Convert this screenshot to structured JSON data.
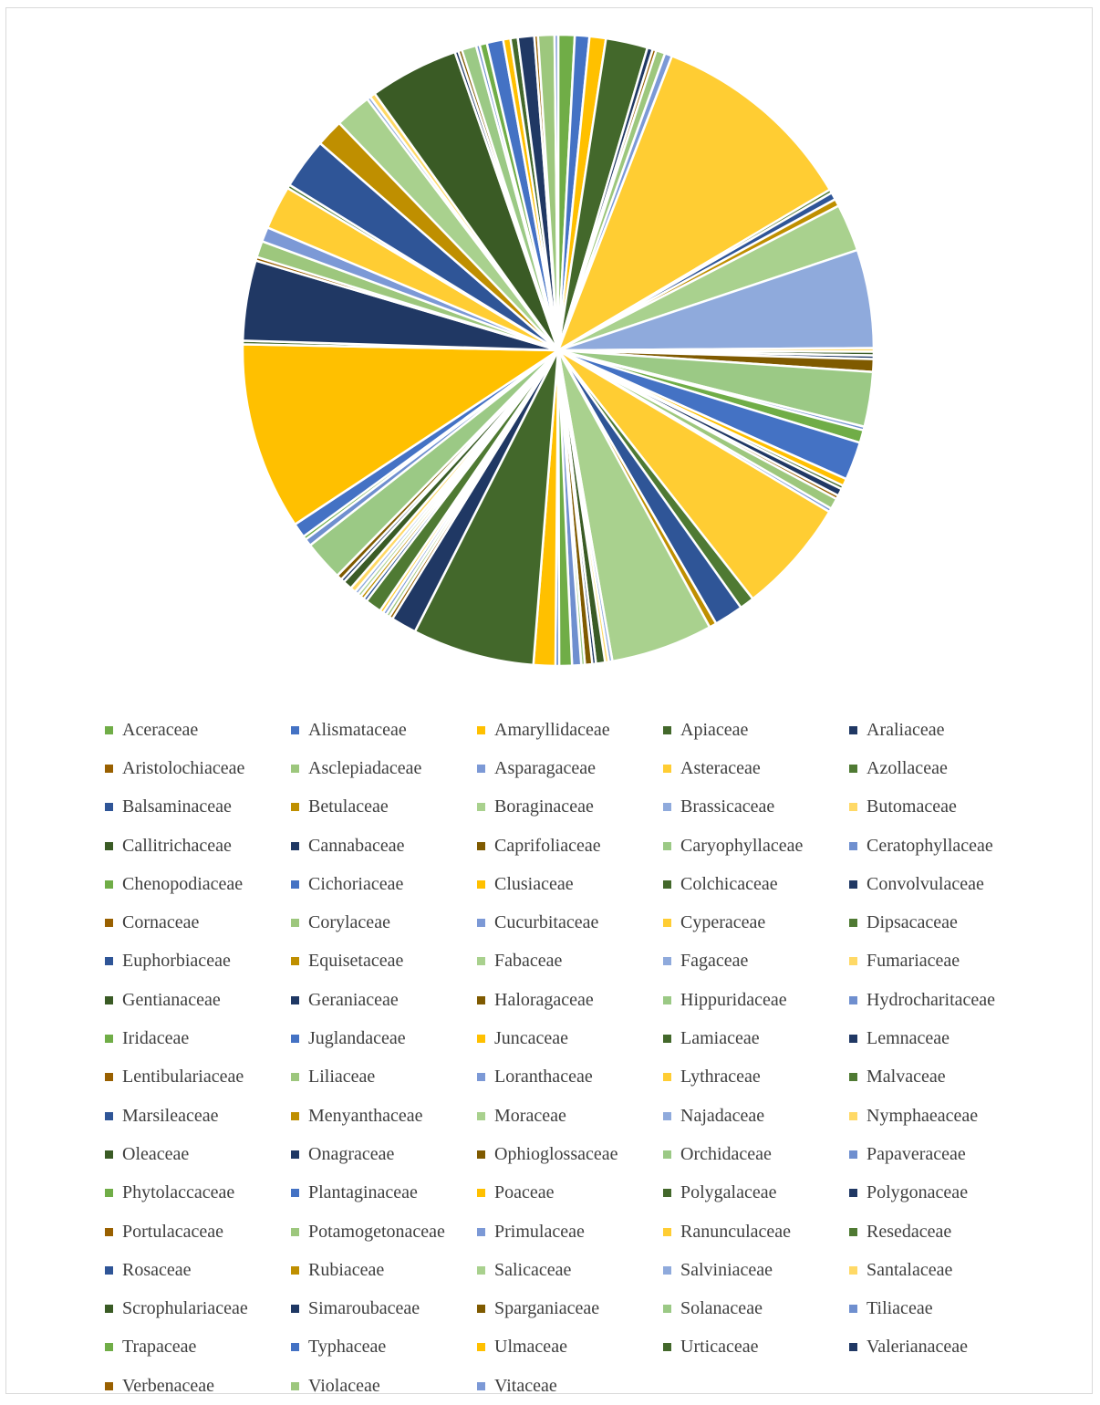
{
  "chart_data": {
    "type": "pie",
    "title": "",
    "legend_position": "bottom",
    "colors": [
      "#70ad47",
      "#4472c4",
      "#ffc000",
      "#43682b",
      "#203864",
      "#996000",
      "#9dc77d",
      "#7c99d6",
      "#ffcd33",
      "#4f7a33",
      "#2f5597",
      "#bf8f00",
      "#a9d18e",
      "#8faadc",
      "#ffd966",
      "#3a5b25",
      "#1f3864",
      "#7f5a00",
      "#9bc985",
      "#6f8fcf"
    ],
    "series": [
      {
        "labels": [
          "Aceraceae",
          "Alismataceae",
          "Amaryllidaceae",
          "Apiaceae",
          "Araliaceae",
          "Aristolochiaceae",
          "Asclepiadaceae",
          "Asparagaceae",
          "Asteraceae",
          "Azollaceae",
          "Balsaminaceae",
          "Betulaceae",
          "Boraginaceae",
          "Brassicaceae",
          "Butomaceae",
          "Callitrichaceae",
          "Cannabaceae",
          "Caprifoliaceae",
          "Caryophyllaceae",
          "Ceratophyllaceae",
          "Chenopodiaceae",
          "Cichoriaceae",
          "Clusiaceae",
          "Colchicaceae",
          "Convolvulaceae",
          "Cornaceae",
          "Corylaceae",
          "Cucurbitaceae",
          "Cyperaceae",
          "Dipsacaceae",
          "Euphorbiaceae",
          "Equisetaceae",
          "Fabaceae",
          "Fagaceae",
          "Fumariaceae",
          "Gentianaceae",
          "Geraniaceae",
          "Haloragaceae",
          "Hippuridaceae",
          "Hydrocharitaceae",
          "Iridaceae",
          "Juglandaceae",
          "Juncaceae",
          "Lamiaceae",
          "Lemnaceae",
          "Lentibulariaceae",
          "Liliaceae",
          "Loranthaceae",
          "Lythraceae",
          "Malvaceae",
          "Marsileaceae",
          "Menyanthaceae",
          "Moraceae",
          "Najadaceae",
          "Nymphaeaceae",
          "Oleaceae",
          "Onagraceae",
          "Ophioglossaceae",
          "Orchidaceae",
          "Papaveraceae",
          "Phytolaccaceae",
          "Plantaginaceae",
          "Poaceae",
          "Polygalaceae",
          "Polygonaceae",
          "Portulacaceae",
          "Potamogetonaceae",
          "Primulaceae",
          "Ranunculaceae",
          "Resedaceae",
          "Rosaceae",
          "Rubiaceae",
          "Salicaceae",
          "Salviniaceae",
          "Santalaceae",
          "Scrophulariaceae",
          "Simaroubaceae",
          "Sparganiaceae",
          "Solanaceae",
          "Tiliaceae",
          "Trapaceae",
          "Typhaceae",
          "Ulmaceae",
          "Urticaceae",
          "Valerianaceae",
          "Verbenaceae",
          "Violaceae",
          "Vitaceae"
        ],
        "values": [
          0.9,
          0.8,
          0.9,
          2.3,
          0.3,
          0.2,
          0.5,
          0.4,
          11.4,
          0.2,
          0.4,
          0.4,
          2.6,
          5.4,
          0.2,
          0.2,
          0.2,
          0.7,
          3.0,
          0.2,
          0.7,
          2.1,
          0.4,
          0.2,
          0.4,
          0.2,
          0.6,
          0.2,
          6.3,
          0.8,
          1.6,
          0.4,
          5.6,
          0.2,
          0.2,
          0.5,
          0.2,
          0.4,
          0.2,
          0.5,
          0.7,
          0.2,
          1.2,
          6.7,
          1.4,
          0.2,
          0.2,
          0.2,
          0.2,
          0.9,
          0.2,
          0.2,
          0.2,
          0.2,
          0.3,
          0.5,
          0.2,
          0.3,
          2.2,
          0.4,
          0.2,
          0.8,
          10.3,
          0.2,
          4.4,
          0.2,
          0.9,
          0.8,
          2.4,
          0.2,
          2.8,
          1.5,
          2.0,
          0.2,
          0.3,
          4.9,
          0.2,
          0.2,
          0.8,
          0.2,
          0.4,
          0.9,
          0.4,
          0.4,
          0.9,
          0.2,
          0.9,
          0.2
        ]
      }
    ]
  }
}
